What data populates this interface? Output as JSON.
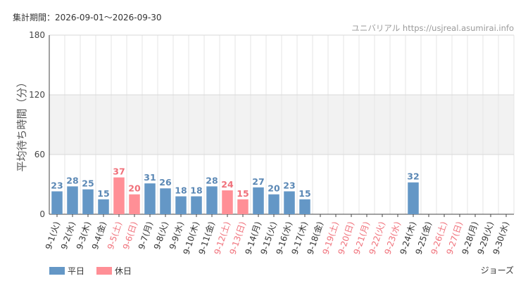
{
  "header": {
    "period": "集計期間：2026-09-01～2026-09-30",
    "credit": "ユニバリアル  https://usjreal.asumirai.info"
  },
  "attraction": "ジョーズ",
  "colors": {
    "weekday": "#6497c6",
    "holiday": "#ff8f96",
    "weekday_text": "#5b88b5",
    "holiday_text": "#f0707a",
    "band": "#f2f2f2",
    "grid": "#e6e6e6"
  },
  "chart_data": {
    "type": "bar",
    "ylabel": "平均待ち時間（分）",
    "ylim": [
      0,
      180
    ],
    "yticks": [
      0,
      60,
      120,
      180
    ],
    "band": [
      60,
      120
    ],
    "grid": true,
    "legend_placement": "bottom-left",
    "legend": [
      {
        "name": "平日",
        "key": "weekday"
      },
      {
        "name": "休日",
        "key": "holiday"
      }
    ],
    "categories": [
      "9-1(火)",
      "9-2(水)",
      "9-3(木)",
      "9-4(金)",
      "9-5(土)",
      "9-6(日)",
      "9-7(月)",
      "9-8(火)",
      "9-9(水)",
      "9-10(木)",
      "9-11(金)",
      "9-12(土)",
      "9-13(日)",
      "9-14(月)",
      "9-15(火)",
      "9-16(水)",
      "9-17(木)",
      "9-18(金)",
      "9-19(土)",
      "9-20(日)",
      "9-21(月)",
      "9-22(火)",
      "9-23(水)",
      "9-24(木)",
      "9-25(金)",
      "9-26(土)",
      "9-27(日)",
      "9-28(月)",
      "9-29(火)",
      "9-30(水)"
    ],
    "holiday": [
      false,
      false,
      false,
      false,
      true,
      true,
      false,
      false,
      false,
      false,
      false,
      true,
      true,
      false,
      false,
      false,
      false,
      false,
      true,
      true,
      true,
      true,
      true,
      false,
      false,
      true,
      true,
      false,
      false,
      false
    ],
    "values": [
      23,
      28,
      25,
      15,
      37,
      20,
      31,
      26,
      18,
      18,
      28,
      24,
      15,
      27,
      20,
      23,
      15,
      null,
      null,
      null,
      null,
      null,
      null,
      32,
      null,
      null,
      null,
      null,
      null,
      null
    ]
  }
}
